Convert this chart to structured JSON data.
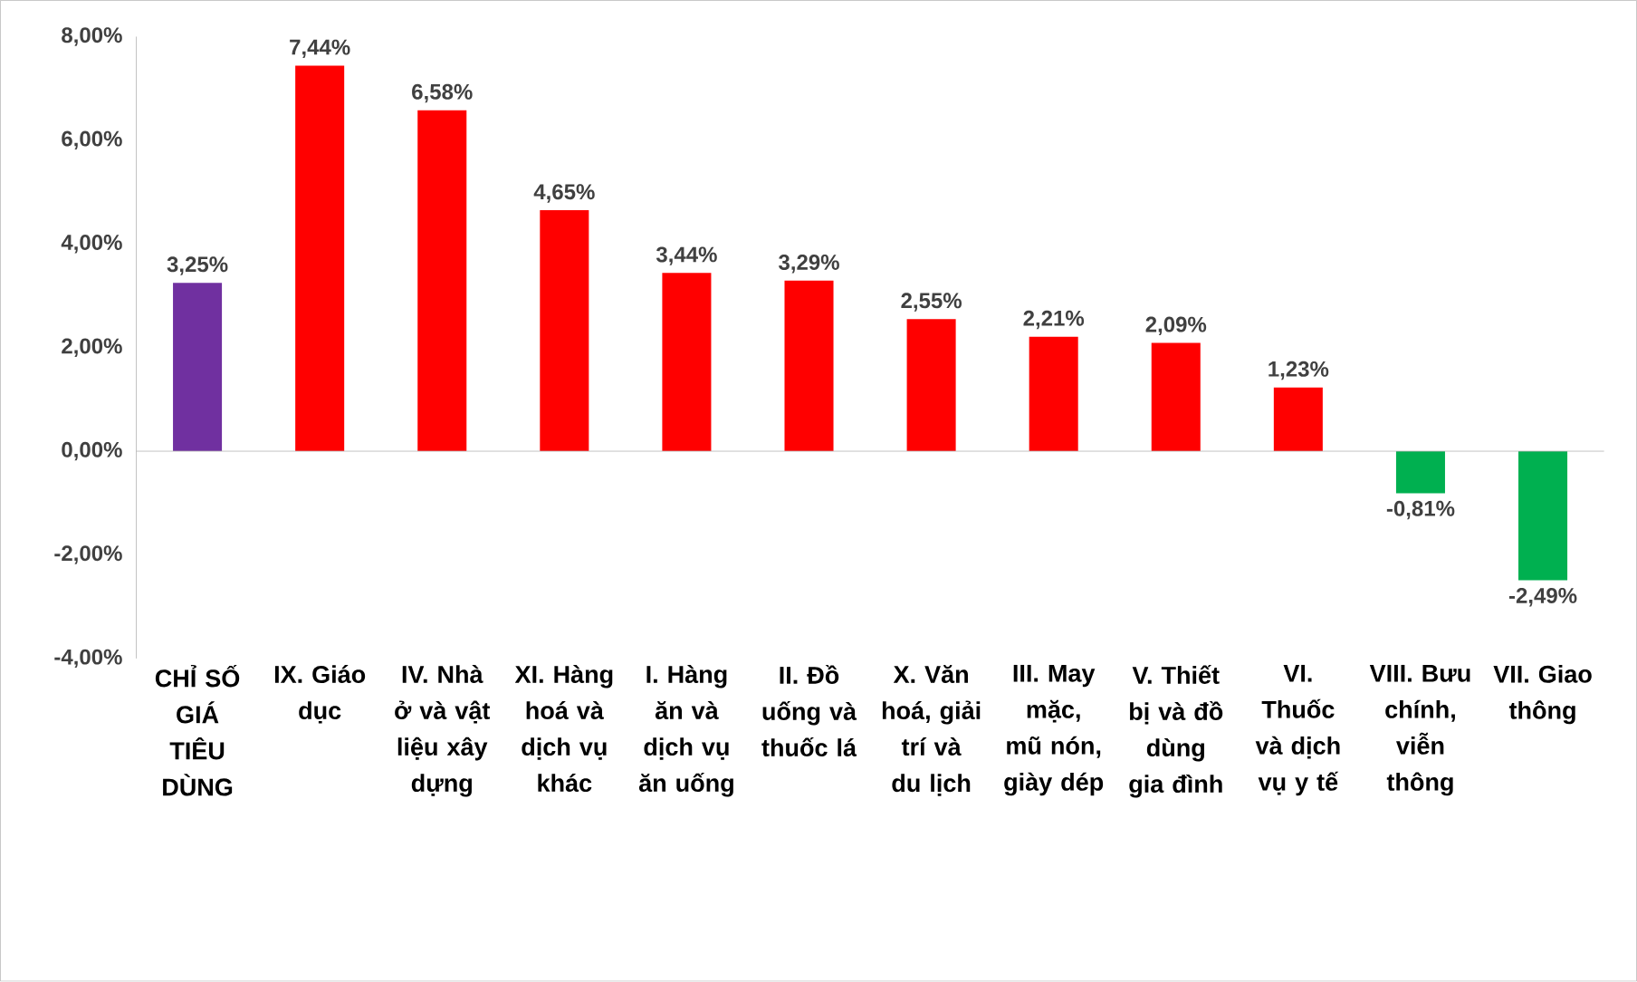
{
  "chart_data": {
    "type": "bar",
    "categories": [
      "CHỈ SỐ GIÁ TIÊU DÙNG",
      "IX. Giáo dục",
      "IV. Nhà ở và vật liệu xây dựng",
      "XI. Hàng hoá và dịch vụ khác",
      "I. Hàng ăn và dịch vụ ăn uống",
      "II. Đồ uống và thuốc lá",
      "X. Văn hoá, giải trí và du lịch",
      "III. May mặc, mũ nón, giày dép",
      "V. Thiết bị và đồ dùng gia đình",
      "VI. Thuốc và dịch vụ y tế",
      "VIII. Bưu chính, viễn thông",
      "VII. Giao thông"
    ],
    "values": [
      3.25,
      7.44,
      6.58,
      4.65,
      3.44,
      3.29,
      2.55,
      2.21,
      2.09,
      1.23,
      -0.81,
      -2.49
    ],
    "value_labels": [
      "3,25%",
      "7,44%",
      "6,58%",
      "4,65%",
      "3,44%",
      "3,29%",
      "2,55%",
      "2,21%",
      "2,09%",
      "1,23%",
      "-0,81%",
      "-2,49%"
    ],
    "colors": [
      "#7030a0",
      "#ff0000",
      "#ff0000",
      "#ff0000",
      "#ff0000",
      "#ff0000",
      "#ff0000",
      "#ff0000",
      "#ff0000",
      "#ff0000",
      "#00b050",
      "#00b050"
    ],
    "ylim": [
      -4,
      8
    ],
    "yticks": [
      {
        "value": -4,
        "label": "-4,00%"
      },
      {
        "value": -2,
        "label": "-2,00%"
      },
      {
        "value": 0,
        "label": "0,00%"
      },
      {
        "value": 2,
        "label": "2,00%"
      },
      {
        "value": 4,
        "label": "4,00%"
      },
      {
        "value": 6,
        "label": "6,00%"
      },
      {
        "value": 8,
        "label": "8,00%"
      }
    ]
  }
}
